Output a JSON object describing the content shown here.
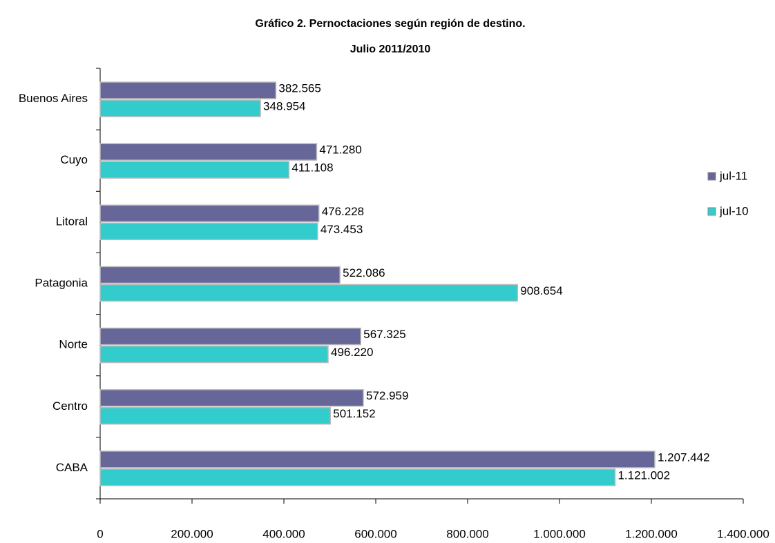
{
  "chart_data": {
    "type": "bar",
    "orientation": "horizontal",
    "title": "Gráfico 2. Pernoctaciones según región de destino.",
    "subtitle": "Julio 2011/2010",
    "categories": [
      "Buenos Aires",
      "Cuyo",
      "Litoral",
      "Patagonia",
      "Norte",
      "Centro",
      "CABA"
    ],
    "series": [
      {
        "name": "jul-11",
        "color": "#666699",
        "values": [
          382565,
          471280,
          476228,
          522086,
          567325,
          572959,
          1207442
        ],
        "value_labels": [
          "382.565",
          "471.280",
          "476.228",
          "522.086",
          "567.325",
          "572.959",
          "1.207.442"
        ]
      },
      {
        "name": "jul-10",
        "color": "#33cccc",
        "values": [
          348954,
          411108,
          473453,
          908654,
          496220,
          501152,
          1121002
        ],
        "value_labels": [
          "348.954",
          "411.108",
          "473.453",
          "908.654",
          "496.220",
          "501.152",
          "1.121.002"
        ]
      }
    ],
    "xlim": [
      0,
      1400000
    ],
    "xticks": [
      0,
      {
        "value": 200000,
        "label": "200.000"
      },
      {
        "value": 400000,
        "label": "400.000"
      },
      {
        "value": 600000,
        "label": "600.000"
      },
      {
        "value": 800000,
        "label": "800.000"
      },
      {
        "value": 1000000,
        "label": "1.000.000"
      },
      {
        "value": 1200000,
        "label": "1.200.000"
      },
      {
        "value": 1400000,
        "label": "1.400.000"
      }
    ],
    "grid": false,
    "legend": "right"
  }
}
